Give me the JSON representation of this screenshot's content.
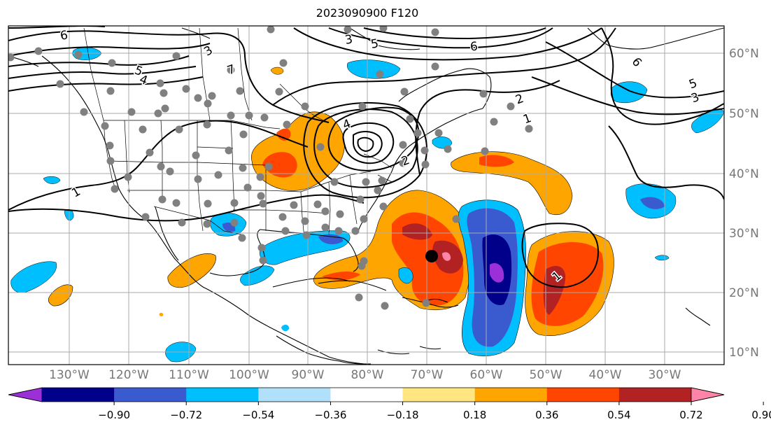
{
  "title": "2023090900 F120",
  "lat_labels": [
    "60°N",
    "50°N",
    "40°N",
    "30°N",
    "20°N",
    "10°N"
  ],
  "lon_labels": [
    "130°W",
    "120°W",
    "110°W",
    "100°W",
    "90°W",
    "80°W",
    "70°W",
    "60°W",
    "50°W",
    "40°W",
    "30°W"
  ],
  "colorbar": {
    "ticks": [
      "−0.90",
      "−0.72",
      "−0.54",
      "−0.36",
      "−0.18",
      "0.18",
      "0.36",
      "0.54",
      "0.72",
      "0.90"
    ],
    "colors": [
      "#9b30d9",
      "#00008b",
      "#3a5bd0",
      "#00bfff",
      "#b0e0fa",
      "#ffffff",
      "#ffe680",
      "#ffa500",
      "#ff4500",
      "#b22222",
      "#ff85a8"
    ]
  },
  "contour_labels": [
    "6",
    "3",
    "5",
    "4",
    "2",
    "1",
    "6",
    "5",
    "3",
    "7",
    "6",
    "5",
    "4",
    "3",
    "2",
    "1",
    "1"
  ],
  "colors": {
    "purple": "#9b30d9",
    "navy": "#00008b",
    "blue": "#3a5bd0",
    "lightblue": "#00bfff",
    "palecyan": "#b0e0fa",
    "yellow": "#ffe680",
    "orange": "#ffa500",
    "redorange": "#ff4500",
    "darkred": "#b22222",
    "pink": "#ff85a8",
    "station": "#808080"
  }
}
